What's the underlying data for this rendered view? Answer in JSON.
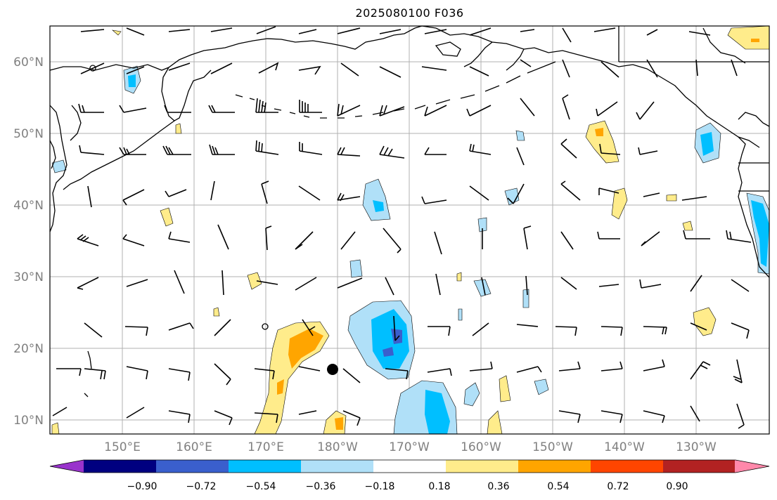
{
  "title": "2025080100 F036",
  "lat_labels": [
    "60°N",
    "50°N",
    "40°N",
    "30°N",
    "20°N",
    "10°N"
  ],
  "lon_labels": [
    "150°E",
    "160°E",
    "170°E",
    "180°W",
    "170°W",
    "160°W",
    "150°W",
    "140°W",
    "130°W"
  ],
  "colorbar": {
    "ticks": [
      "−0.90",
      "−0.72",
      "−0.54",
      "−0.36",
      "−0.18",
      "0.18",
      "0.36",
      "0.54",
      "0.72",
      "0.90"
    ],
    "colors": [
      "#9933cc",
      "#000080",
      "#3a5fcd",
      "#00bfff",
      "#b0e0f8",
      "#ffffff",
      "#ffec8b",
      "#ffa500",
      "#ff4500",
      "#b22222",
      "#ff88aa"
    ]
  },
  "markers": [
    {
      "name": "filled-dot",
      "lon": 179.5,
      "lat": 17.0
    }
  ],
  "colors": {
    "land_outline": "#000000",
    "grid": "#b0b0b0"
  }
}
